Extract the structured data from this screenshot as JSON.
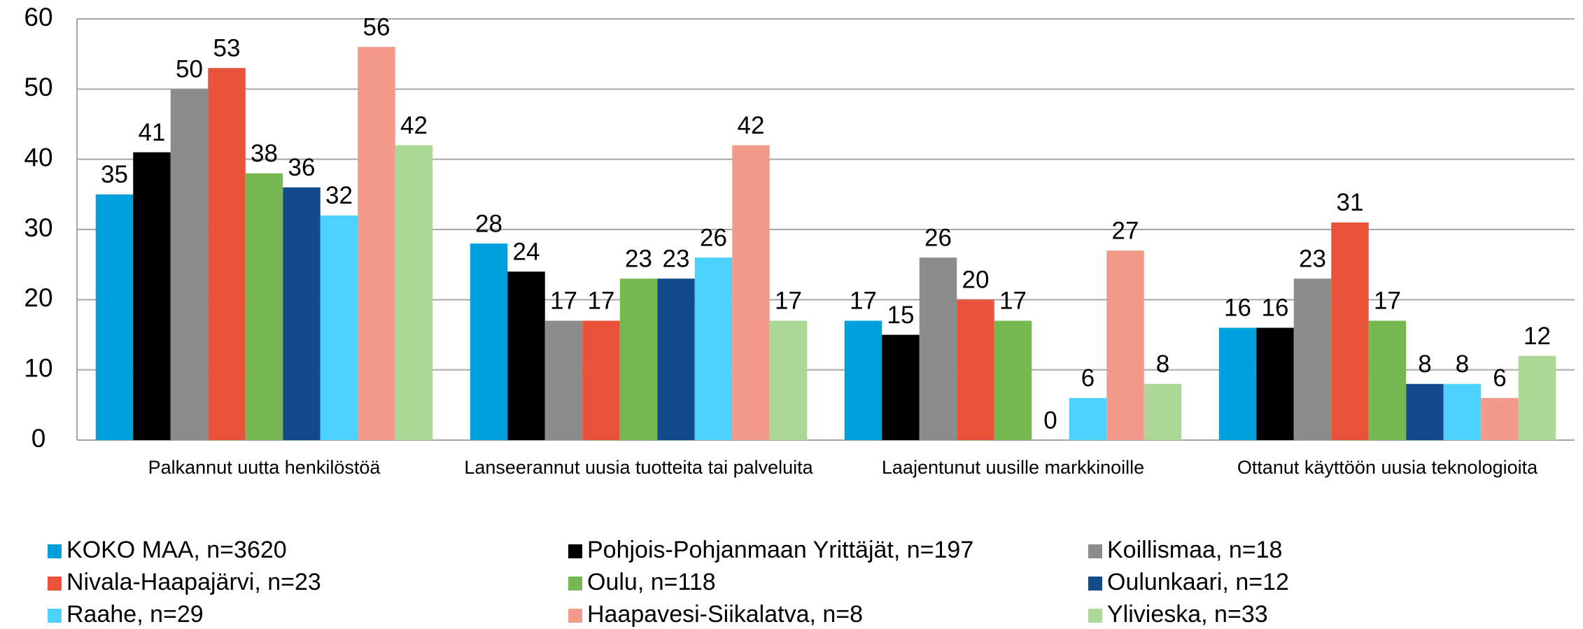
{
  "chart_data": {
    "type": "bar",
    "categories": [
      "Palkannut uutta henkilöstöä",
      "Lanseerannut uusia tuotteita tai palveluita",
      "Laajentunut uusille markkinoille",
      "Ottanut käyttöön uusia teknologioita"
    ],
    "series": [
      {
        "name": "KOKO MAA, n=3620",
        "color": "#00a0dc",
        "values": [
          35,
          28,
          17,
          16
        ]
      },
      {
        "name": "Pohjois-Pohjanmaan Yrittäjät, n=197",
        "color": "#000000",
        "values": [
          41,
          24,
          15,
          16
        ]
      },
      {
        "name": "Koillismaa, n=18",
        "color": "#8c8c8c",
        "values": [
          50,
          17,
          26,
          23
        ]
      },
      {
        "name": "Nivala-Haapajärvi, n=23",
        "color": "#e8533a",
        "values": [
          53,
          17,
          20,
          31
        ]
      },
      {
        "name": "Oulu, n=118",
        "color": "#76b852",
        "values": [
          38,
          23,
          17,
          17
        ]
      },
      {
        "name": "Oulunkaari, n=12",
        "color": "#124a8c",
        "values": [
          36,
          23,
          0,
          8
        ]
      },
      {
        "name": "Raahe, n=29",
        "color": "#4dd2ff",
        "values": [
          32,
          26,
          6,
          8
        ]
      },
      {
        "name": "Haapavesi-Siikalatva, n=8",
        "color": "#f29b8c",
        "values": [
          56,
          42,
          27,
          6
        ]
      },
      {
        "name": "Ylivieska, n=33",
        "color": "#acd896",
        "values": [
          42,
          17,
          8,
          12
        ]
      }
    ],
    "ylim": [
      0,
      60
    ],
    "yticks": [
      0,
      10,
      20,
      30,
      40,
      50,
      60
    ],
    "grid": true,
    "legend": "bottom"
  }
}
